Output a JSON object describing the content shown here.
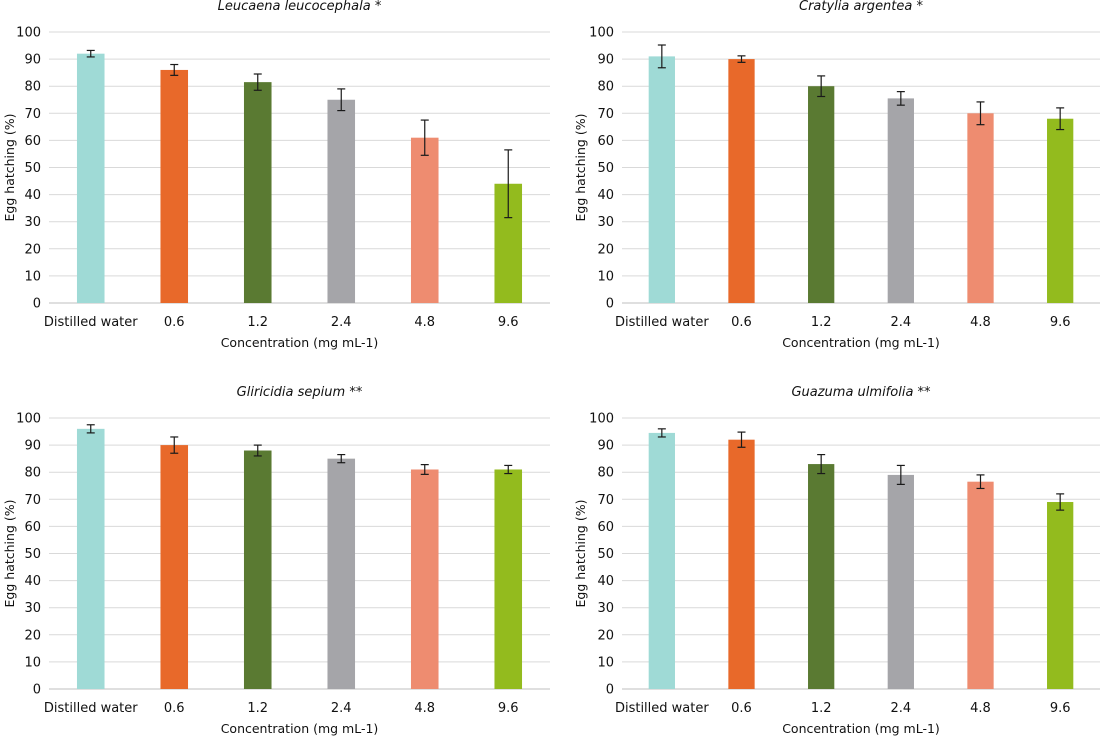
{
  "chart_data": [
    {
      "type": "bar",
      "title": "Leucaena leucocephala *",
      "xlabel": "Concentration (mg mL-1)",
      "ylabel": "Egg hatching (%)",
      "ylim": [
        0,
        100
      ],
      "yticks": [
        0,
        10,
        20,
        30,
        40,
        50,
        60,
        70,
        80,
        90,
        100
      ],
      "grid": true,
      "categories": [
        "Distilled water",
        "0.6",
        "1.2",
        "2.4",
        "4.8",
        "9.6"
      ],
      "values": [
        92,
        86,
        81.5,
        75,
        61,
        44
      ],
      "error": [
        1.2,
        2,
        3,
        4,
        6.5,
        12.5
      ],
      "colors": [
        "#9fdad6",
        "#e8692a",
        "#5a7a32",
        "#a5a5a9",
        "#ee8c70",
        "#93bb1e"
      ]
    },
    {
      "type": "bar",
      "title": "Cratylia argentea *",
      "xlabel": "Concentration (mg mL-1)",
      "ylabel": "Egg hatching (%)",
      "ylim": [
        0,
        100
      ],
      "yticks": [
        0,
        10,
        20,
        30,
        40,
        50,
        60,
        70,
        80,
        90,
        100
      ],
      "grid": true,
      "categories": [
        "Distilled water",
        "0.6",
        "1.2",
        "2.4",
        "4.8",
        "9.6"
      ],
      "values": [
        91,
        90,
        80,
        75.5,
        70,
        68
      ],
      "error": [
        4.2,
        1.2,
        3.8,
        2.5,
        4.2,
        4
      ],
      "colors": [
        "#9fdad6",
        "#e8692a",
        "#5a7a32",
        "#a5a5a9",
        "#ee8c70",
        "#93bb1e"
      ]
    },
    {
      "type": "bar",
      "title": "Gliricidia sepium **",
      "xlabel": "Concentration (mg mL-1)",
      "ylabel": "Egg hatching (%)",
      "ylim": [
        0,
        100
      ],
      "yticks": [
        0,
        10,
        20,
        30,
        40,
        50,
        60,
        70,
        80,
        90,
        100
      ],
      "grid": true,
      "categories": [
        "Distilled water",
        "0.6",
        "1.2",
        "2.4",
        "4.8",
        "9.6"
      ],
      "values": [
        96,
        90,
        88,
        85,
        81,
        81
      ],
      "error": [
        1.5,
        3,
        2,
        1.5,
        1.8,
        1.5
      ],
      "colors": [
        "#9fdad6",
        "#e8692a",
        "#5a7a32",
        "#a5a5a9",
        "#ee8c70",
        "#93bb1e"
      ]
    },
    {
      "type": "bar",
      "title": "Guazuma ulmifolia **",
      "xlabel": "Concentration (mg mL-1)",
      "ylabel": "Egg hatching (%)",
      "ylim": [
        0,
        100
      ],
      "yticks": [
        0,
        10,
        20,
        30,
        40,
        50,
        60,
        70,
        80,
        90,
        100
      ],
      "grid": true,
      "categories": [
        "Distilled water",
        "0.6",
        "1.2",
        "2.4",
        "4.8",
        "9.6"
      ],
      "values": [
        94.5,
        92,
        83,
        79,
        76.5,
        69
      ],
      "error": [
        1.5,
        2.8,
        3.5,
        3.5,
        2.5,
        3
      ],
      "colors": [
        "#9fdad6",
        "#e8692a",
        "#5a7a32",
        "#a5a5a9",
        "#ee8c70",
        "#93bb1e"
      ]
    }
  ]
}
